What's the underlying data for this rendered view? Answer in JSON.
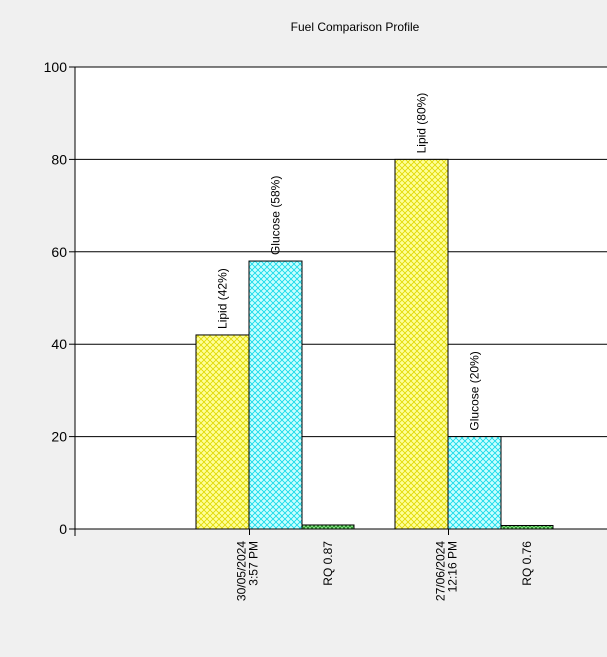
{
  "chart_data": {
    "type": "bar",
    "title": "Fuel Comparison Profile",
    "xlabel": "",
    "ylabel": "",
    "ylim": [
      0,
      100
    ],
    "yticks": [
      0,
      20,
      40,
      60,
      80,
      100
    ],
    "grid": true,
    "groups": [
      {
        "date_label": [
          "30/05/2024",
          "3:57 PM"
        ],
        "rq_label": "RQ 0.87",
        "bars": [
          {
            "series": "lipid",
            "value": 42,
            "label": "Lipid (42%)"
          },
          {
            "series": "glucose",
            "value": 58,
            "label": "Glucose (58%)"
          },
          {
            "series": "rq",
            "value": 0.87,
            "label": ""
          }
        ]
      },
      {
        "date_label": [
          "27/06/2024",
          "12:16 PM"
        ],
        "rq_label": "RQ 0.76",
        "bars": [
          {
            "series": "lipid",
            "value": 80,
            "label": "Lipid (80%)"
          },
          {
            "series": "glucose",
            "value": 20,
            "label": "Glucose (20%)"
          },
          {
            "series": "rq",
            "value": 0.76,
            "label": ""
          }
        ]
      }
    ],
    "colors": {
      "lipid_fill": "#ffff99",
      "lipid_hatch": "#e0d800",
      "glucose_fill": "#c8ffff",
      "glucose_hatch": "#10d8e8",
      "rq_fill": "#90ee90",
      "rq_hatch": "#208020",
      "plot_bg": "#ffffff",
      "page_bg": "#f0f0f0"
    }
  }
}
